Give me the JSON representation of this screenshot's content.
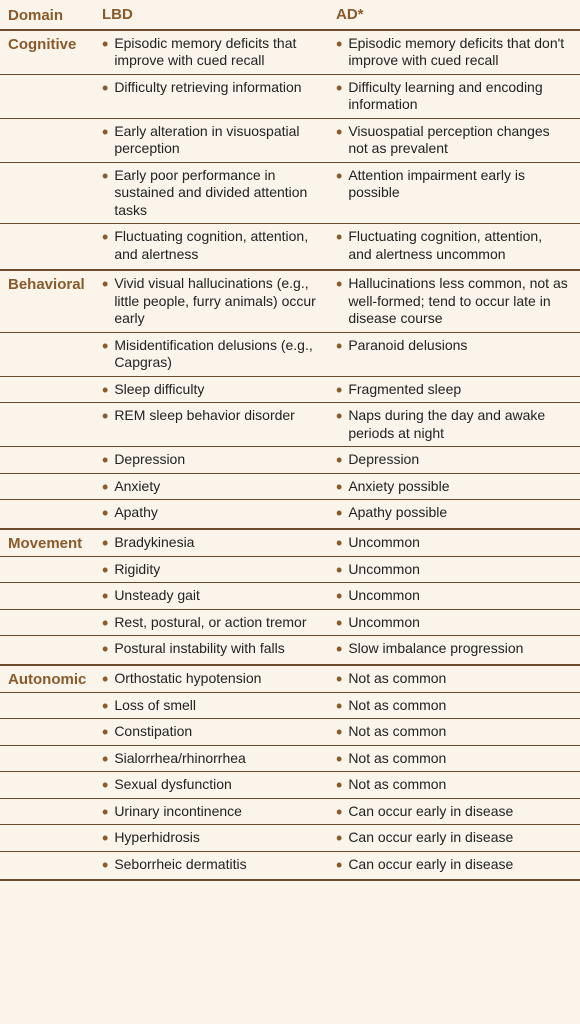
{
  "header": {
    "domain": "Domain",
    "lbd": "LBD",
    "ad": "AD*"
  },
  "domains": [
    {
      "name": "Cognitive",
      "rows": [
        {
          "lbd": "Episodic memory deficits that improve with cued recall",
          "ad": "Episodic memory deficits that don't improve with cued recall"
        },
        {
          "lbd": "Difficulty retrieving infor­mation",
          "ad": "Difficulty learning and encoding information"
        },
        {
          "lbd": "Early alteration in visuospa­tial perception",
          "ad": "Visuospatial perception changes not as prevalent"
        },
        {
          "lbd": "Early poor performance in sustained and divided attention tasks",
          "ad": "Attention impairment early is possible"
        },
        {
          "lbd": "Fluctuating cognition, at­tention, and alertness",
          "ad": "Fluctuating cognition, attention, and alertness uncommon"
        }
      ]
    },
    {
      "name": "Behavioral",
      "rows": [
        {
          "lbd": "Vivid visual hallucinations (e.g., little people, furry animals) occur early",
          "ad": "Hallucinations less common, not as well-formed; tend to occur late in disease course"
        },
        {
          "lbd": "Misidentification delusions (e.g., Capgras)",
          "ad": "Paranoid delusions"
        },
        {
          "lbd": "Sleep difficulty",
          "ad": "Fragmented sleep"
        },
        {
          "lbd": "REM sleep behavior disorder",
          "ad": "Naps during the day and awake periods at night"
        },
        {
          "lbd": "Depression",
          "ad": "Depression"
        },
        {
          "lbd": "Anxiety",
          "ad": "Anxiety possible"
        },
        {
          "lbd": "Apathy",
          "ad": "Apathy possible"
        }
      ]
    },
    {
      "name": "Movement",
      "rows": [
        {
          "lbd": "Bradykinesia",
          "ad": "Uncommon"
        },
        {
          "lbd": "Rigidity",
          "ad": "Uncommon"
        },
        {
          "lbd": "Unsteady gait",
          "ad": "Uncommon"
        },
        {
          "lbd": "Rest, postural, or action tremor",
          "ad": "Uncommon"
        },
        {
          "lbd": "Postural instability with falls",
          "ad": "Slow imbalance pro­gression"
        }
      ]
    },
    {
      "name": "Autonomic",
      "rows": [
        {
          "lbd": "Orthostatic hypotension",
          "ad": "Not as common"
        },
        {
          "lbd": "Loss of smell",
          "ad": "Not as common"
        },
        {
          "lbd": "Constipation",
          "ad": "Not as common"
        },
        {
          "lbd": "Sialorrhea/rhinorrhea",
          "ad": "Not as common"
        },
        {
          "lbd": "Sexual dysfunction",
          "ad": "Not as common"
        },
        {
          "lbd": "Urinary incontinence",
          "ad": "Can occur early in disease"
        },
        {
          "lbd": "Hyperhidrosis",
          "ad": "Can occur early in disease"
        },
        {
          "lbd": "Seborrheic dermatitis",
          "ad": "Can occur early in disease"
        }
      ]
    }
  ]
}
